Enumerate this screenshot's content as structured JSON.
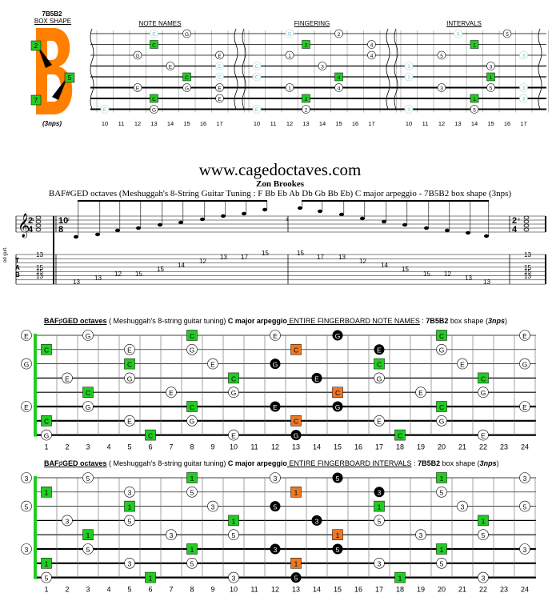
{
  "box": {
    "code": "7B5B2",
    "shape_label": "BOX SHAPE",
    "nps": "(3nps)",
    "markers": [
      "2",
      "5",
      "7"
    ]
  },
  "charts": [
    {
      "title": "NOTE NAMES"
    },
    {
      "title": "FINGERING"
    },
    {
      "title": "INTERVALS"
    }
  ],
  "small_frets": [
    "10",
    "11",
    "12",
    "13",
    "14",
    "15",
    "16",
    "17"
  ],
  "site": "www.cagedoctaves.com",
  "author": "Zon Brookes",
  "subtitle": "BAF#GED octaves (Meshuggah's 8-String Guitar Tuning : F Bb Eb Ab Db Gb Bb Eb) C major arpeggio - 7B5B2 box shape (3nps)",
  "staff": {
    "time_top": "2",
    "time_bottom": "4",
    "tuplet_top": "10",
    "tuplet_bottom": "8",
    "tab_label": "T\nA\nB",
    "side_label": "od guit.",
    "measure_numbers": [
      "1",
      "2",
      "3",
      "4"
    ],
    "tab_m1": [
      "13",
      "15",
      "15",
      "13"
    ],
    "tab_m2": [
      "13",
      "13",
      "12",
      "15",
      "15",
      "14",
      "12",
      "13",
      "17",
      "15"
    ],
    "tab_m3": [
      "15",
      "17",
      "13",
      "12",
      "14",
      "15",
      "15",
      "12",
      "13",
      "13"
    ],
    "tab_m4": [
      "13",
      "15",
      "15",
      "13"
    ]
  },
  "panel1": {
    "pre": "BAF♯GED octaves",
    "mid1": " ( Meshuggah's 8-string guitar tuning) ",
    "bold1": "C major arpeggio",
    "link": " ENTIRE FINGERBOARD NOTE NAMES",
    "sep": " : ",
    "shape": "7B5B2",
    "post": " box shape (",
    "nps": "3nps",
    "end": ")"
  },
  "panel2": {
    "pre": "BAF♯GED octaves",
    "mid1": " ( Meshuggah's 8-string guitar tuning) ",
    "bold1": "C major arpeggio",
    "link": " ENTIRE FINGERBOARD INTERVALS",
    "sep": " : ",
    "shape": "7B5B2",
    "post": " box shape (",
    "nps": "3nps",
    "end": ")"
  },
  "big_frets": [
    "1",
    "2",
    "3",
    "4",
    "5",
    "6",
    "7",
    "8",
    "9",
    "10",
    "11",
    "12",
    "13",
    "14",
    "15",
    "16",
    "17",
    "18",
    "19",
    "20",
    "21",
    "22",
    "23",
    "24"
  ],
  "colors": {
    "green": "#22cc22",
    "orange": "#ee7722",
    "black": "#000000",
    "letter": "#ff7f00"
  },
  "small_notes": {
    "note_names": [
      [
        0,
        13,
        "E",
        "o"
      ],
      [
        0,
        15,
        "G",
        "w"
      ],
      [
        1,
        13,
        "C",
        "g"
      ],
      [
        2,
        12,
        "G",
        "w"
      ],
      [
        2,
        17,
        "E",
        "w"
      ],
      [
        3,
        14,
        "E",
        "w"
      ],
      [
        3,
        17,
        "C",
        "o"
      ],
      [
        4,
        15,
        "C",
        "g"
      ],
      [
        4,
        17,
        "C",
        "o"
      ],
      [
        5,
        12,
        "E",
        "w"
      ],
      [
        5,
        15,
        "G",
        "w"
      ],
      [
        5,
        17,
        "E",
        "w"
      ],
      [
        6,
        13,
        "C",
        "g"
      ],
      [
        6,
        17,
        "E",
        "w"
      ],
      [
        7,
        13,
        "G",
        "w"
      ],
      [
        7,
        10,
        "E",
        "o"
      ]
    ],
    "fingering": [
      [
        0,
        12,
        "G",
        "o"
      ],
      [
        0,
        15,
        "2",
        "w"
      ],
      [
        1,
        13,
        "2",
        "g"
      ],
      [
        1,
        17,
        "4",
        "w"
      ],
      [
        2,
        12,
        "1",
        "w"
      ],
      [
        2,
        17,
        "4",
        "w"
      ],
      [
        3,
        14,
        "3",
        "w"
      ],
      [
        3,
        10,
        "C",
        "o"
      ],
      [
        4,
        15,
        "4",
        "g"
      ],
      [
        4,
        10,
        "C",
        "o"
      ],
      [
        5,
        12,
        "1",
        "w"
      ],
      [
        5,
        15,
        "4",
        "w"
      ],
      [
        6,
        13,
        "2",
        "g"
      ],
      [
        6,
        17,
        "",
        ""
      ],
      [
        7,
        13,
        "2",
        "w"
      ],
      [
        7,
        10,
        "E",
        "o"
      ]
    ],
    "intervals": [
      [
        0,
        13,
        "3",
        "o"
      ],
      [
        0,
        16,
        "5",
        "w"
      ],
      [
        1,
        14,
        "1",
        "g"
      ],
      [
        2,
        12,
        "5",
        "w"
      ],
      [
        2,
        17,
        "3",
        "o"
      ],
      [
        3,
        15,
        "3",
        "w"
      ],
      [
        3,
        10,
        "1",
        "o"
      ],
      [
        4,
        15,
        "1",
        "g"
      ],
      [
        4,
        10,
        "1",
        "o"
      ],
      [
        5,
        12,
        "3",
        "w"
      ],
      [
        5,
        15,
        "5",
        "w"
      ],
      [
        5,
        17,
        "3",
        "o"
      ],
      [
        6,
        14,
        "1",
        "g"
      ],
      [
        6,
        17,
        "3",
        "o"
      ],
      [
        7,
        14,
        "5",
        "w"
      ],
      [
        7,
        10,
        "3",
        "o"
      ]
    ]
  },
  "big_notes": {
    "panel1": [
      [
        0,
        0,
        "E",
        "w"
      ],
      [
        0,
        3,
        "G",
        "w"
      ],
      [
        0,
        8,
        "C",
        "g"
      ],
      [
        0,
        12,
        "E",
        "w"
      ],
      [
        0,
        15,
        "G",
        "b"
      ],
      [
        0,
        20,
        "C",
        "g"
      ],
      [
        0,
        24,
        "E",
        "w"
      ],
      [
        1,
        1,
        "C",
        "g"
      ],
      [
        1,
        5,
        "E",
        "w"
      ],
      [
        1,
        8,
        "G",
        "w"
      ],
      [
        1,
        13,
        "C",
        "o"
      ],
      [
        1,
        17,
        "E",
        "b"
      ],
      [
        1,
        20,
        "G",
        "w"
      ],
      [
        2,
        0,
        "G",
        "w"
      ],
      [
        2,
        5,
        "C",
        "g"
      ],
      [
        2,
        9,
        "E",
        "w"
      ],
      [
        2,
        12,
        "G",
        "b"
      ],
      [
        2,
        17,
        "C",
        "g"
      ],
      [
        2,
        21,
        "E",
        "w"
      ],
      [
        2,
        24,
        "G",
        "w"
      ],
      [
        3,
        2,
        "E",
        "w"
      ],
      [
        3,
        5,
        "G",
        "w"
      ],
      [
        3,
        10,
        "C",
        "g"
      ],
      [
        3,
        14,
        "E",
        "b"
      ],
      [
        3,
        17,
        "G",
        "w"
      ],
      [
        3,
        22,
        "C",
        "g"
      ],
      [
        4,
        3,
        "C",
        "g"
      ],
      [
        4,
        7,
        "E",
        "w"
      ],
      [
        4,
        10,
        "G",
        "w"
      ],
      [
        4,
        15,
        "C",
        "o"
      ],
      [
        4,
        19,
        "E",
        "w"
      ],
      [
        4,
        22,
        "G",
        "w"
      ],
      [
        5,
        0,
        "E",
        "w"
      ],
      [
        5,
        3,
        "G",
        "w"
      ],
      [
        5,
        8,
        "C",
        "g"
      ],
      [
        5,
        12,
        "E",
        "b"
      ],
      [
        5,
        15,
        "G",
        "b"
      ],
      [
        5,
        20,
        "C",
        "g"
      ],
      [
        5,
        24,
        "E",
        "w"
      ],
      [
        6,
        1,
        "C",
        "g"
      ],
      [
        6,
        5,
        "E",
        "w"
      ],
      [
        6,
        8,
        "G",
        "w"
      ],
      [
        6,
        13,
        "C",
        "o"
      ],
      [
        6,
        17,
        "E",
        "w"
      ],
      [
        6,
        20,
        "G",
        "w"
      ],
      [
        7,
        1,
        "G",
        "w"
      ],
      [
        7,
        6,
        "C",
        "g"
      ],
      [
        7,
        10,
        "E",
        "w"
      ],
      [
        7,
        13,
        "G",
        "b"
      ],
      [
        7,
        18,
        "C",
        "g"
      ],
      [
        7,
        22,
        "E",
        "w"
      ]
    ],
    "panel2": [
      [
        0,
        0,
        "3",
        "w"
      ],
      [
        0,
        3,
        "5",
        "w"
      ],
      [
        0,
        8,
        "1",
        "g"
      ],
      [
        0,
        12,
        "3",
        "w"
      ],
      [
        0,
        15,
        "5",
        "b"
      ],
      [
        0,
        20,
        "1",
        "g"
      ],
      [
        0,
        24,
        "3",
        "w"
      ],
      [
        1,
        1,
        "1",
        "g"
      ],
      [
        1,
        5,
        "3",
        "w"
      ],
      [
        1,
        8,
        "5",
        "w"
      ],
      [
        1,
        13,
        "1",
        "o"
      ],
      [
        1,
        17,
        "3",
        "b"
      ],
      [
        1,
        20,
        "5",
        "w"
      ],
      [
        2,
        0,
        "5",
        "w"
      ],
      [
        2,
        5,
        "1",
        "g"
      ],
      [
        2,
        9,
        "3",
        "w"
      ],
      [
        2,
        12,
        "5",
        "b"
      ],
      [
        2,
        17,
        "1",
        "g"
      ],
      [
        2,
        21,
        "3",
        "w"
      ],
      [
        2,
        24,
        "5",
        "w"
      ],
      [
        3,
        2,
        "3",
        "w"
      ],
      [
        3,
        5,
        "5",
        "w"
      ],
      [
        3,
        10,
        "1",
        "g"
      ],
      [
        3,
        14,
        "3",
        "b"
      ],
      [
        3,
        17,
        "5",
        "w"
      ],
      [
        3,
        22,
        "1",
        "g"
      ],
      [
        4,
        3,
        "1",
        "g"
      ],
      [
        4,
        7,
        "3",
        "w"
      ],
      [
        4,
        10,
        "5",
        "w"
      ],
      [
        4,
        15,
        "1",
        "o"
      ],
      [
        4,
        19,
        "3",
        "w"
      ],
      [
        4,
        22,
        "5",
        "w"
      ],
      [
        5,
        0,
        "3",
        "w"
      ],
      [
        5,
        3,
        "5",
        "w"
      ],
      [
        5,
        8,
        "1",
        "g"
      ],
      [
        5,
        12,
        "3",
        "b"
      ],
      [
        5,
        15,
        "5",
        "b"
      ],
      [
        5,
        20,
        "1",
        "g"
      ],
      [
        5,
        24,
        "3",
        "w"
      ],
      [
        6,
        1,
        "1",
        "g"
      ],
      [
        6,
        5,
        "3",
        "w"
      ],
      [
        6,
        8,
        "5",
        "w"
      ],
      [
        6,
        13,
        "1",
        "o"
      ],
      [
        6,
        17,
        "3",
        "w"
      ],
      [
        6,
        20,
        "5",
        "w"
      ],
      [
        7,
        1,
        "5",
        "w"
      ],
      [
        7,
        6,
        "1",
        "g"
      ],
      [
        7,
        10,
        "3",
        "w"
      ],
      [
        7,
        13,
        "5",
        "b"
      ],
      [
        7,
        18,
        "1",
        "g"
      ],
      [
        7,
        22,
        "3",
        "w"
      ]
    ]
  }
}
